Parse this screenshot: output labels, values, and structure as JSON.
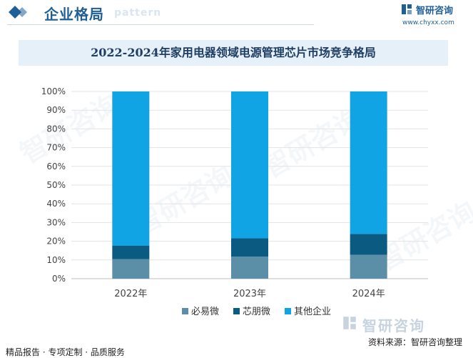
{
  "header": {
    "title": "企业格局",
    "subtitle": "pattern"
  },
  "logo": {
    "name": "智研咨询",
    "url": "www.chyxx.com"
  },
  "footer": {
    "left": "精品报告 · 专项定制 · 品质服务",
    "source": "资料来源：智研咨询整理",
    "logo_text": "智研咨询"
  },
  "watermark_text": "智研咨询",
  "colors": {
    "brand": "#1f5f97",
    "title_bg": "#e6f0f8"
  },
  "chart_data": {
    "type": "bar",
    "stacked": true,
    "percent": true,
    "title": "2022-2024年家用电器领域电源管理芯片市场竞争格局",
    "categories": [
      "2022年",
      "2023年",
      "2024年"
    ],
    "series": [
      {
        "name": "必易微",
        "color": "#5b8fa8",
        "values": [
          10.5,
          11.8,
          12.8
        ]
      },
      {
        "name": "芯朋微",
        "color": "#0a5a82",
        "values": [
          7.2,
          9.8,
          11.1
        ]
      },
      {
        "name": "其他企业",
        "color": "#10a4e4",
        "values": [
          82.3,
          78.4,
          76.1
        ]
      }
    ],
    "ylim": [
      0,
      100
    ],
    "yticks": [
      "0%",
      "10%",
      "20%",
      "30%",
      "40%",
      "50%",
      "60%",
      "70%",
      "80%",
      "90%",
      "100%"
    ],
    "grid": true,
    "legend": "bottom"
  }
}
